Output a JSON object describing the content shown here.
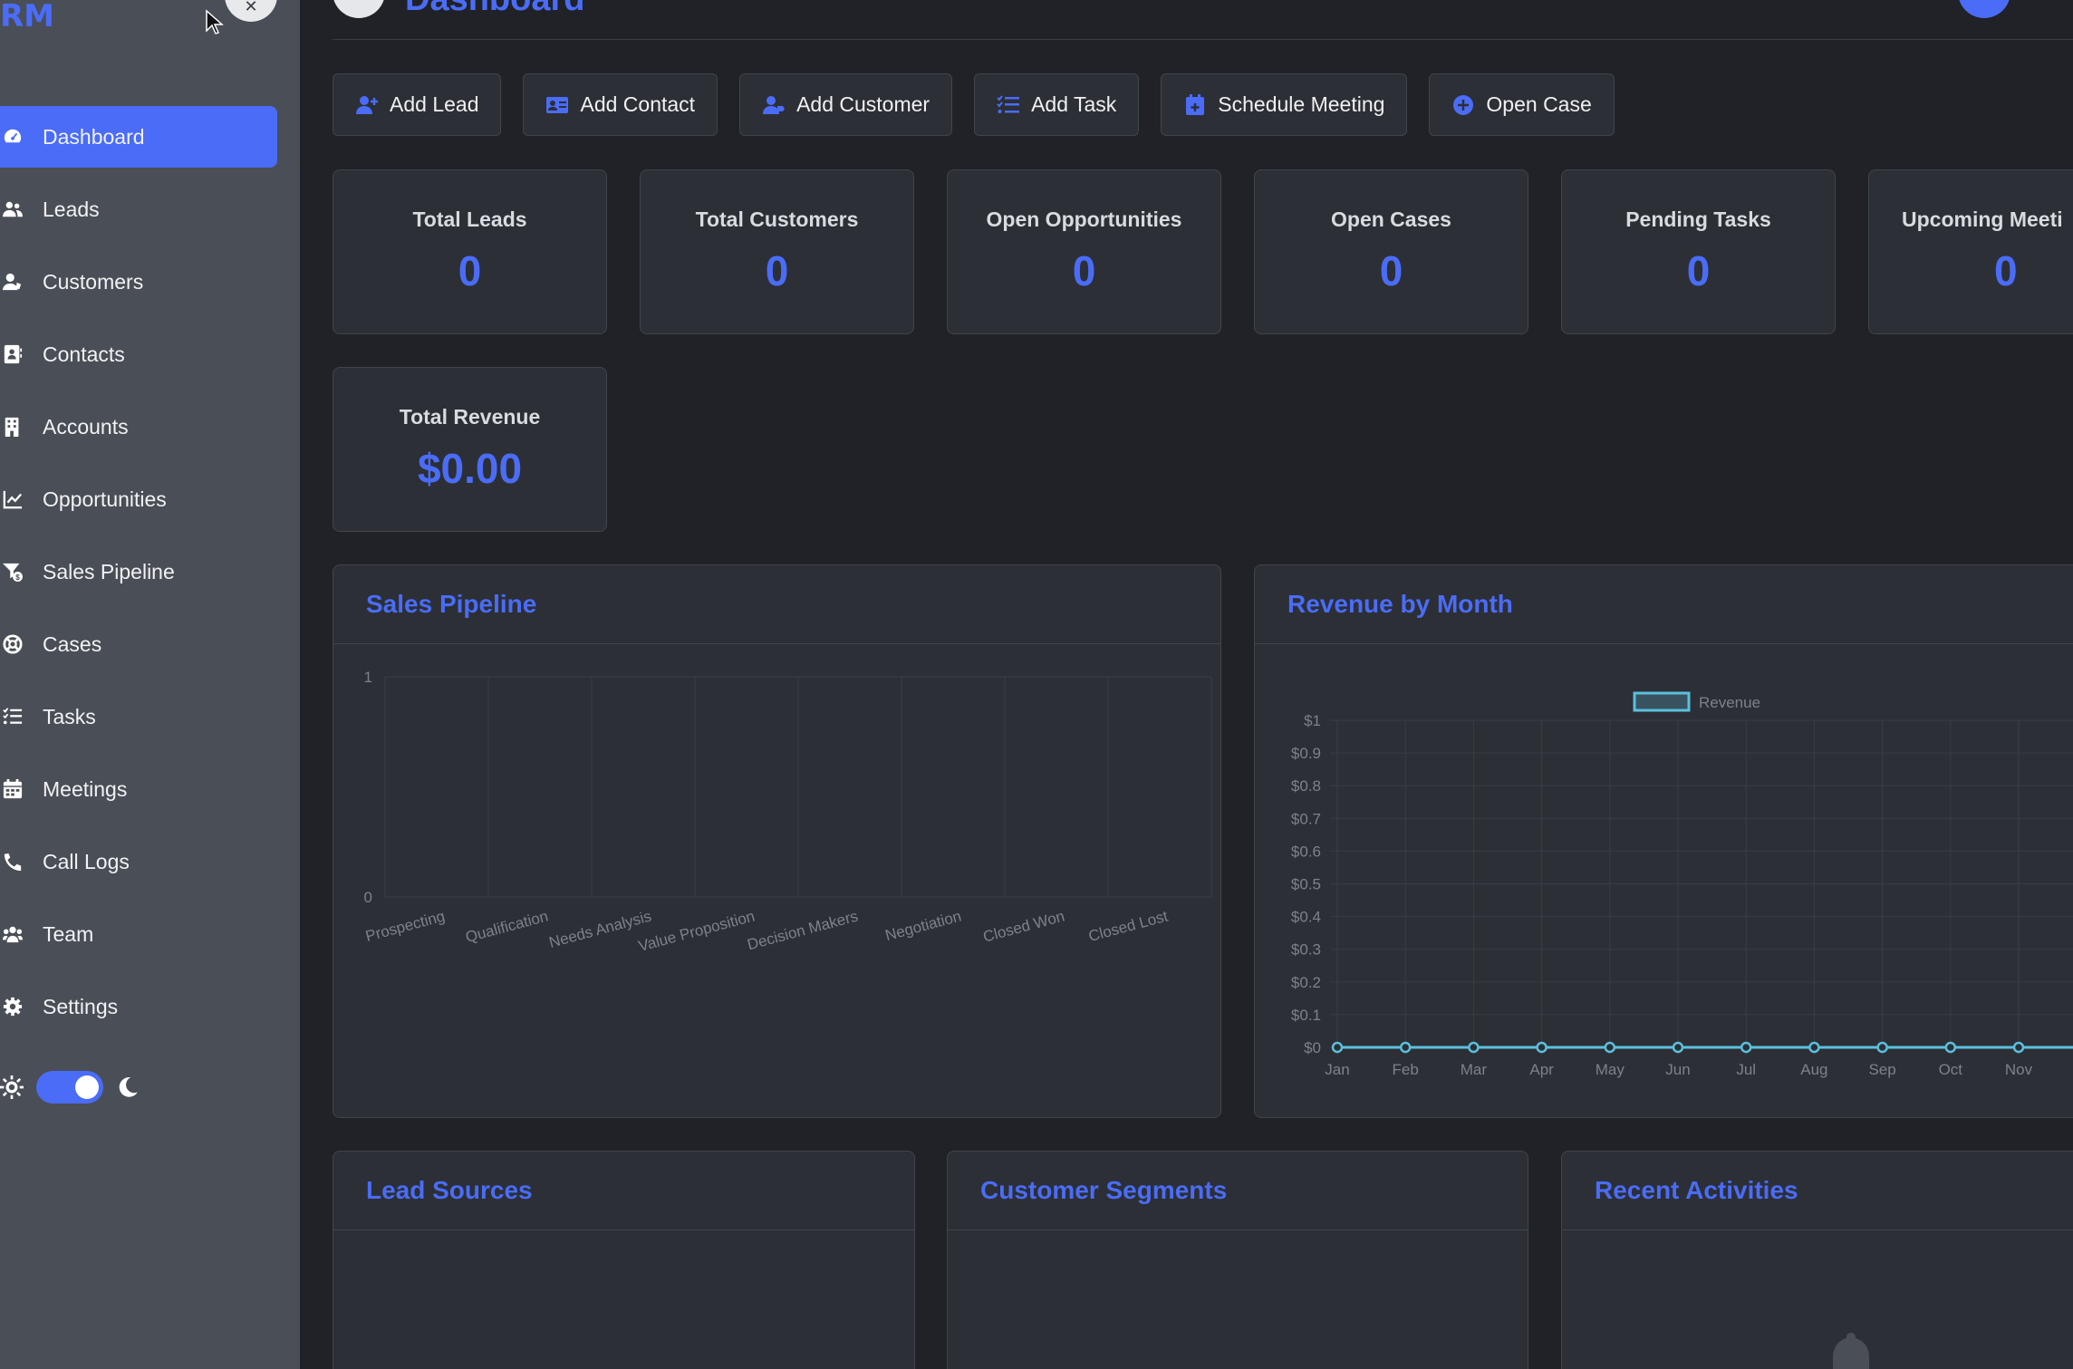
{
  "sidebar": {
    "brand": "RM",
    "items": [
      {
        "label": "Dashboard",
        "icon": "gauge-icon",
        "active": true
      },
      {
        "label": "Leads",
        "icon": "users-icon"
      },
      {
        "label": "Customers",
        "icon": "user-tie-icon"
      },
      {
        "label": "Contacts",
        "icon": "address-book-icon"
      },
      {
        "label": "Accounts",
        "icon": "building-icon"
      },
      {
        "label": "Opportunities",
        "icon": "chart-line-icon"
      },
      {
        "label": "Sales Pipeline",
        "icon": "funnel-dollar-icon"
      },
      {
        "label": "Cases",
        "icon": "life-ring-icon"
      },
      {
        "label": "Tasks",
        "icon": "list-check-icon"
      },
      {
        "label": "Meetings",
        "icon": "calendar-icon"
      },
      {
        "label": "Call Logs",
        "icon": "phone-icon"
      },
      {
        "label": "Team",
        "icon": "team-icon"
      },
      {
        "label": "Settings",
        "icon": "gear-icon"
      }
    ],
    "theme_toggle": {
      "dark_mode": true
    }
  },
  "header": {
    "title": "Dashboard"
  },
  "actions": [
    {
      "label": "Add Lead",
      "icon": "user-plus-icon"
    },
    {
      "label": "Add Contact",
      "icon": "id-card-icon"
    },
    {
      "label": "Add Customer",
      "icon": "user-tag-icon"
    },
    {
      "label": "Add Task",
      "icon": "tasks-icon"
    },
    {
      "label": "Schedule Meeting",
      "icon": "calendar-plus-icon"
    },
    {
      "label": "Open Case",
      "icon": "plus-circle-icon"
    }
  ],
  "stats": [
    {
      "label": "Total Leads",
      "value": "0"
    },
    {
      "label": "Total Customers",
      "value": "0"
    },
    {
      "label": "Open Opportunities",
      "value": "0"
    },
    {
      "label": "Open Cases",
      "value": "0"
    },
    {
      "label": "Pending Tasks",
      "value": "0"
    },
    {
      "label": "Upcoming Meeti",
      "value": "0"
    },
    {
      "label": "Total Revenue",
      "value": "$0.00"
    }
  ],
  "panels": {
    "sales_pipeline": "Sales Pipeline",
    "revenue_by_month": "Revenue by Month",
    "lead_sources": "Lead Sources",
    "customer_segments": "Customer Segments",
    "recent_activities": "Recent Activities"
  },
  "colors": {
    "accent": "#4a6cf7",
    "line": "#5bc0de"
  },
  "chart_data": [
    {
      "type": "bar",
      "categories": [
        "Prospecting",
        "Qualification",
        "Needs Analysis",
        "Value Proposition",
        "Decision Makers",
        "Negotiation",
        "Closed Won",
        "Closed Lost"
      ],
      "values": [
        0,
        0,
        0,
        0,
        0,
        0,
        0,
        0
      ],
      "ylim": [
        0,
        1
      ],
      "yticks": [
        "0",
        "1"
      ],
      "grid": true
    },
    {
      "type": "line",
      "x": [
        "Jan",
        "Feb",
        "Mar",
        "Apr",
        "May",
        "Jun",
        "Jul",
        "Aug",
        "Sep",
        "Oct",
        "Nov"
      ],
      "series": [
        {
          "name": "Revenue",
          "values": [
            0,
            0,
            0,
            0,
            0,
            0,
            0,
            0,
            0,
            0,
            0
          ]
        }
      ],
      "ylim": [
        0,
        1
      ],
      "yticks": [
        "$0",
        "$0.1",
        "$0.2",
        "$0.3",
        "$0.4",
        "$0.5",
        "$0.6",
        "$0.7",
        "$0.8",
        "$0.9",
        "$1"
      ],
      "legend": "top",
      "grid": true
    }
  ]
}
